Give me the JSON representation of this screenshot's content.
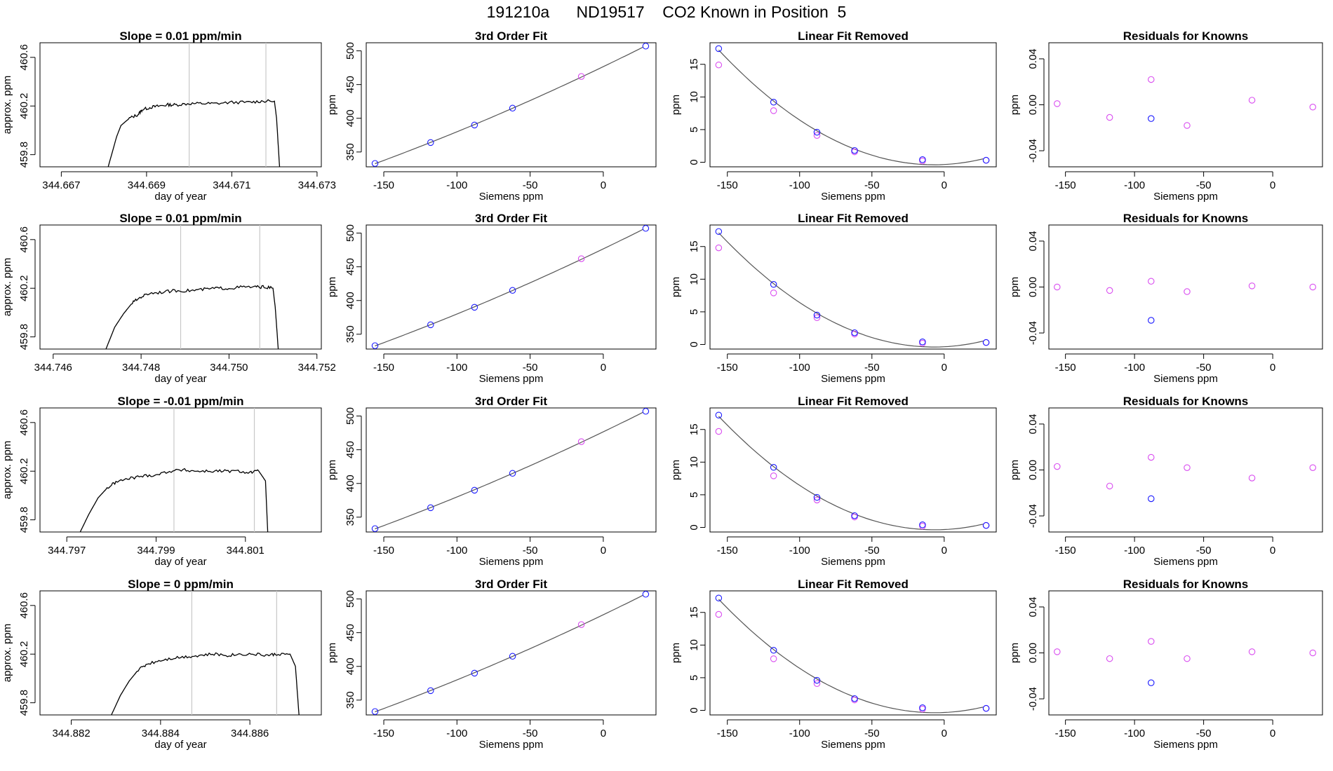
{
  "title": "191210a      ND19517    CO2 Known in Position  5",
  "colors": {
    "line": "#000000",
    "blue": "#1a1aff",
    "magenta": "#d94cf0",
    "vline": "#c8c8c8",
    "fit": "#555555"
  },
  "chart_data": [
    {
      "type": "line",
      "row": 0,
      "panel": "timeseries",
      "title": "Slope =  0.01  ppm/min",
      "xlabel": "day of year",
      "ylabel": "approx. ppm",
      "xlim": [
        344.6665,
        344.6731
      ],
      "ylim": [
        459.7,
        460.72
      ],
      "xticks": [
        344.667,
        344.669,
        344.671,
        344.673
      ],
      "xtick_labels": [
        "344.667",
        "344.669",
        "344.671",
        "344.673"
      ],
      "yticks": [
        459.8,
        460.2,
        460.6
      ],
      "ytick_labels": [
        "459.8",
        "460.2",
        "460.6"
      ],
      "vlines": [
        344.67,
        344.6718
      ],
      "x": [
        344.6681,
        344.6683,
        344.6684,
        344.6686,
        344.6688,
        344.6689,
        344.6691,
        344.6693,
        344.6695,
        344.6697,
        344.67,
        344.6703,
        344.6706,
        344.671,
        344.6714,
        344.6717,
        344.672,
        344.67205,
        344.67212
      ],
      "y": [
        459.7,
        459.95,
        460.04,
        460.1,
        460.13,
        460.17,
        460.19,
        460.2,
        460.21,
        460.21,
        460.22,
        460.22,
        460.22,
        460.23,
        460.23,
        460.24,
        460.24,
        460.1,
        459.7
      ]
    },
    {
      "type": "scatter",
      "row": 0,
      "panel": "fit",
      "title": "3rd Order Fit",
      "xlabel": "Siemens ppm",
      "ylabel": "ppm",
      "xlim": [
        -162,
        36
      ],
      "ylim": [
        328,
        512
      ],
      "xticks": [
        -150,
        -100,
        -50,
        0
      ],
      "xtick_labels": [
        "-150",
        "-100",
        "-50",
        "0"
      ],
      "yticks": [
        350,
        400,
        450,
        500
      ],
      "ytick_labels": [
        "350",
        "400",
        "450",
        "500"
      ],
      "fit_curve": true,
      "blue_x": [
        -156,
        -118,
        -88,
        -62,
        29
      ],
      "blue_y": [
        333,
        364,
        390,
        415,
        507
      ],
      "magenta_x": [
        -15
      ],
      "magenta_y": [
        462
      ]
    },
    {
      "type": "scatter",
      "row": 0,
      "panel": "linear_removed",
      "title": "Linear Fit Removed",
      "xlabel": "Siemens ppm",
      "ylabel": "ppm",
      "xlim": [
        -162,
        36
      ],
      "ylim": [
        -0.7,
        18.3
      ],
      "xticks": [
        -150,
        -100,
        -50,
        0
      ],
      "xtick_labels": [
        "-150",
        "-100",
        "-50",
        "0"
      ],
      "yticks": [
        0,
        5,
        10,
        15
      ],
      "ytick_labels": [
        "0",
        "5",
        "10",
        "15"
      ],
      "quadratic_curve": true,
      "blue_x": [
        -156,
        -118,
        -88,
        -62,
        -15,
        29
      ],
      "blue_y": [
        17.4,
        9.2,
        4.6,
        1.8,
        0.4,
        0.3
      ],
      "magenta_x": [
        -156,
        -118,
        -88,
        -62,
        -15,
        29
      ],
      "magenta_y": [
        14.9,
        7.9,
        4.1,
        1.6,
        0.2,
        0.3
      ]
    },
    {
      "type": "scatter",
      "row": 0,
      "panel": "residuals",
      "title": "Residuals for Knowns",
      "xlabel": "Siemens ppm",
      "ylabel": "ppm",
      "xlim": [
        -162,
        36
      ],
      "ylim": [
        -0.054,
        0.054
      ],
      "xticks": [
        -150,
        -100,
        -50,
        0
      ],
      "xtick_labels": [
        "-150",
        "-100",
        "-50",
        "0"
      ],
      "yticks": [
        -0.04,
        0.0,
        0.04
      ],
      "ytick_labels": [
        "-0.04",
        "0.00",
        "0.04"
      ],
      "blue_x": [
        -88
      ],
      "blue_y": [
        -0.012
      ],
      "magenta_x": [
        -156,
        -118,
        -88,
        -62,
        -15,
        29
      ],
      "magenta_y": [
        0.001,
        -0.011,
        0.022,
        -0.018,
        0.004,
        -0.002
      ]
    },
    {
      "type": "line",
      "row": 1,
      "panel": "timeseries",
      "title": "Slope =  0.01  ppm/min",
      "xlabel": "day of year",
      "ylabel": "approx. ppm",
      "xlim": [
        344.7457,
        344.7521
      ],
      "ylim": [
        459.7,
        460.72
      ],
      "xticks": [
        344.746,
        344.748,
        344.75,
        344.752
      ],
      "xtick_labels": [
        "344.746",
        "344.748",
        "344.750",
        "344.752"
      ],
      "yticks": [
        459.8,
        460.2,
        460.6
      ],
      "ytick_labels": [
        "459.8",
        "460.2",
        "460.6"
      ],
      "vlines": [
        344.7489,
        344.7507
      ],
      "x": [
        344.7472,
        344.7474,
        344.7476,
        344.7478,
        344.748,
        344.7482,
        344.7485,
        344.7488,
        344.7491,
        344.7494,
        344.7497,
        344.75,
        344.7503,
        344.7506,
        344.7508,
        344.751,
        344.75105,
        344.75112
      ],
      "y": [
        459.7,
        459.88,
        459.99,
        460.08,
        460.13,
        460.16,
        460.17,
        460.18,
        460.18,
        460.19,
        460.2,
        460.2,
        460.21,
        460.21,
        460.21,
        460.2,
        460.05,
        459.7
      ]
    },
    {
      "type": "scatter",
      "row": 1,
      "panel": "fit",
      "title": "3rd Order Fit",
      "xlabel": "Siemens ppm",
      "ylabel": "ppm",
      "xlim": [
        -162,
        36
      ],
      "ylim": [
        328,
        512
      ],
      "xticks": [
        -150,
        -100,
        -50,
        0
      ],
      "xtick_labels": [
        "-150",
        "-100",
        "-50",
        "0"
      ],
      "yticks": [
        350,
        400,
        450,
        500
      ],
      "ytick_labels": [
        "350",
        "400",
        "450",
        "500"
      ],
      "fit_curve": true,
      "blue_x": [
        -156,
        -118,
        -88,
        -62,
        29
      ],
      "blue_y": [
        333,
        364,
        390,
        415,
        507
      ],
      "magenta_x": [
        -15
      ],
      "magenta_y": [
        462
      ]
    },
    {
      "type": "scatter",
      "row": 1,
      "panel": "linear_removed",
      "title": "Linear Fit Removed",
      "xlabel": "Siemens ppm",
      "ylabel": "ppm",
      "xlim": [
        -162,
        36
      ],
      "ylim": [
        -0.7,
        18.3
      ],
      "xticks": [
        -150,
        -100,
        -50,
        0
      ],
      "xtick_labels": [
        "-150",
        "-100",
        "-50",
        "0"
      ],
      "yticks": [
        0,
        5,
        10,
        15
      ],
      "ytick_labels": [
        "0",
        "5",
        "10",
        "15"
      ],
      "quadratic_curve": true,
      "blue_x": [
        -156,
        -118,
        -88,
        -62,
        -15,
        29
      ],
      "blue_y": [
        17.3,
        9.2,
        4.5,
        1.8,
        0.4,
        0.3
      ],
      "magenta_x": [
        -156,
        -118,
        -88,
        -62,
        -15,
        29
      ],
      "magenta_y": [
        14.8,
        7.9,
        4.1,
        1.6,
        0.2,
        0.3
      ]
    },
    {
      "type": "scatter",
      "row": 1,
      "panel": "residuals",
      "title": "Residuals for Knowns",
      "xlabel": "Siemens ppm",
      "ylabel": "ppm",
      "xlim": [
        -162,
        36
      ],
      "ylim": [
        -0.054,
        0.054
      ],
      "xticks": [
        -150,
        -100,
        -50,
        0
      ],
      "xtick_labels": [
        "-150",
        "-100",
        "-50",
        "0"
      ],
      "yticks": [
        -0.04,
        0.0,
        0.04
      ],
      "ytick_labels": [
        "-0.04",
        "0.00",
        "0.04"
      ],
      "blue_x": [
        -88
      ],
      "blue_y": [
        -0.029
      ],
      "magenta_x": [
        -156,
        -118,
        -88,
        -62,
        -15,
        29
      ],
      "magenta_y": [
        0.0,
        -0.003,
        0.005,
        -0.004,
        0.001,
        0.0
      ]
    },
    {
      "type": "line",
      "row": 2,
      "panel": "timeseries",
      "title": "Slope =  -0.01  ppm/min",
      "xlabel": "day of year",
      "ylabel": "approx. ppm",
      "xlim": [
        344.7964,
        344.8027
      ],
      "ylim": [
        459.7,
        460.72
      ],
      "xticks": [
        344.797,
        344.799,
        344.801
      ],
      "xtick_labels": [
        "344.797",
        "344.799",
        "344.801"
      ],
      "yticks": [
        459.8,
        460.2,
        460.6
      ],
      "ytick_labels": [
        "459.8",
        "460.2",
        "460.6"
      ],
      "vlines": [
        344.7994,
        344.8012
      ],
      "x": [
        344.7973,
        344.7975,
        344.7977,
        344.7979,
        344.7981,
        344.7984,
        344.7987,
        344.799,
        344.7993,
        344.7996,
        344.7999,
        344.8002,
        344.8005,
        344.8008,
        344.8011,
        344.8013,
        344.80145,
        344.8015
      ],
      "y": [
        459.7,
        459.85,
        459.98,
        460.06,
        460.11,
        460.14,
        460.16,
        460.17,
        460.2,
        460.21,
        460.2,
        460.2,
        460.2,
        460.2,
        460.19,
        460.2,
        460.12,
        459.7
      ]
    },
    {
      "type": "scatter",
      "row": 2,
      "panel": "fit",
      "title": "3rd Order Fit",
      "xlabel": "Siemens ppm",
      "ylabel": "ppm",
      "xlim": [
        -162,
        36
      ],
      "ylim": [
        328,
        512
      ],
      "xticks": [
        -150,
        -100,
        -50,
        0
      ],
      "xtick_labels": [
        "-150",
        "-100",
        "-50",
        "0"
      ],
      "yticks": [
        350,
        400,
        450,
        500
      ],
      "ytick_labels": [
        "350",
        "400",
        "450",
        "500"
      ],
      "fit_curve": true,
      "blue_x": [
        -156,
        -118,
        -88,
        -62,
        29
      ],
      "blue_y": [
        333,
        364,
        390,
        415,
        507
      ],
      "magenta_x": [
        -15
      ],
      "magenta_y": [
        462
      ]
    },
    {
      "type": "scatter",
      "row": 2,
      "panel": "linear_removed",
      "title": "Linear Fit Removed",
      "xlabel": "Siemens ppm",
      "ylabel": "ppm",
      "xlim": [
        -162,
        36
      ],
      "ylim": [
        -0.7,
        18.3
      ],
      "xticks": [
        -150,
        -100,
        -50,
        0
      ],
      "xtick_labels": [
        "-150",
        "-100",
        "-50",
        "0"
      ],
      "yticks": [
        0,
        5,
        10,
        15
      ],
      "ytick_labels": [
        "0",
        "5",
        "10",
        "15"
      ],
      "quadratic_curve": true,
      "blue_x": [
        -156,
        -118,
        -88,
        -62,
        -15,
        29
      ],
      "blue_y": [
        17.2,
        9.2,
        4.6,
        1.8,
        0.4,
        0.3
      ],
      "magenta_x": [
        -156,
        -118,
        -88,
        -62,
        -15,
        29
      ],
      "magenta_y": [
        14.7,
        7.9,
        4.2,
        1.6,
        0.2,
        0.3
      ]
    },
    {
      "type": "scatter",
      "row": 2,
      "panel": "residuals",
      "title": "Residuals for Knowns",
      "xlabel": "Siemens ppm",
      "ylabel": "ppm",
      "xlim": [
        -162,
        36
      ],
      "ylim": [
        -0.054,
        0.054
      ],
      "xticks": [
        -150,
        -100,
        -50,
        0
      ],
      "xtick_labels": [
        "-150",
        "-100",
        "-50",
        "0"
      ],
      "yticks": [
        -0.04,
        0.0,
        0.04
      ],
      "ytick_labels": [
        "-0.04",
        "0.00",
        "0.04"
      ],
      "blue_x": [
        -88
      ],
      "blue_y": [
        -0.025
      ],
      "magenta_x": [
        -156,
        -118,
        -88,
        -62,
        -15,
        29
      ],
      "magenta_y": [
        0.003,
        -0.014,
        0.011,
        0.002,
        -0.007,
        0.002
      ]
    },
    {
      "type": "line",
      "row": 3,
      "panel": "timeseries",
      "title": "Slope =  0  ppm/min",
      "xlabel": "day of year",
      "ylabel": "approx. ppm",
      "xlim": [
        344.8813,
        344.8876
      ],
      "ylim": [
        459.7,
        460.72
      ],
      "xticks": [
        344.882,
        344.884,
        344.886
      ],
      "xtick_labels": [
        "344.882",
        "344.884",
        "344.886"
      ],
      "yticks": [
        459.8,
        460.2,
        460.6
      ],
      "ytick_labels": [
        "459.8",
        "460.2",
        "460.6"
      ],
      "vlines": [
        344.8847,
        344.8866
      ],
      "x": [
        344.8829,
        344.8831,
        344.8833,
        344.8835,
        344.8837,
        344.884,
        344.8843,
        344.8846,
        344.8849,
        344.8852,
        344.8855,
        344.8858,
        344.8861,
        344.8864,
        344.8866,
        344.8869,
        344.88702,
        344.8871
      ],
      "y": [
        459.7,
        459.86,
        459.98,
        460.07,
        460.12,
        460.15,
        460.17,
        460.18,
        460.19,
        460.2,
        460.19,
        460.2,
        460.2,
        460.19,
        460.2,
        460.2,
        460.1,
        459.7
      ]
    },
    {
      "type": "scatter",
      "row": 3,
      "panel": "fit",
      "title": "3rd Order Fit",
      "xlabel": "Siemens ppm",
      "ylabel": "ppm",
      "xlim": [
        -162,
        36
      ],
      "ylim": [
        328,
        512
      ],
      "xticks": [
        -150,
        -100,
        -50,
        0
      ],
      "xtick_labels": [
        "-150",
        "-100",
        "-50",
        "0"
      ],
      "yticks": [
        350,
        400,
        450,
        500
      ],
      "ytick_labels": [
        "350",
        "400",
        "450",
        "500"
      ],
      "fit_curve": true,
      "blue_x": [
        -156,
        -118,
        -88,
        -62,
        29
      ],
      "blue_y": [
        333,
        364,
        390,
        415,
        507
      ],
      "magenta_x": [
        -15
      ],
      "magenta_y": [
        462
      ]
    },
    {
      "type": "scatter",
      "row": 3,
      "panel": "linear_removed",
      "title": "Linear Fit Removed",
      "xlabel": "Siemens ppm",
      "ylabel": "ppm",
      "xlim": [
        -162,
        36
      ],
      "ylim": [
        -0.7,
        18.3
      ],
      "xticks": [
        -150,
        -100,
        -50,
        0
      ],
      "xtick_labels": [
        "-150",
        "-100",
        "-50",
        "0"
      ],
      "yticks": [
        0,
        5,
        10,
        15
      ],
      "ytick_labels": [
        "0",
        "5",
        "10",
        "15"
      ],
      "quadratic_curve": true,
      "blue_x": [
        -156,
        -118,
        -88,
        -62,
        -15,
        29
      ],
      "blue_y": [
        17.2,
        9.2,
        4.6,
        1.8,
        0.4,
        0.3
      ],
      "magenta_x": [
        -156,
        -118,
        -88,
        -62,
        -15,
        29
      ],
      "magenta_y": [
        14.7,
        7.9,
        4.1,
        1.6,
        0.2,
        0.3
      ]
    },
    {
      "type": "scatter",
      "row": 3,
      "panel": "residuals",
      "title": "Residuals for Knowns",
      "xlabel": "Siemens ppm",
      "ylabel": "ppm",
      "xlim": [
        -162,
        36
      ],
      "ylim": [
        -0.054,
        0.054
      ],
      "xticks": [
        -150,
        -100,
        -50,
        0
      ],
      "xtick_labels": [
        "-150",
        "-100",
        "-50",
        "0"
      ],
      "yticks": [
        -0.04,
        0.0,
        0.04
      ],
      "ytick_labels": [
        "-0.04",
        "0.00",
        "0.04"
      ],
      "blue_x": [
        -88
      ],
      "blue_y": [
        -0.026
      ],
      "magenta_x": [
        -156,
        -118,
        -88,
        -62,
        -15,
        29
      ],
      "magenta_y": [
        0.001,
        -0.005,
        0.01,
        -0.005,
        0.001,
        0.0
      ]
    }
  ]
}
